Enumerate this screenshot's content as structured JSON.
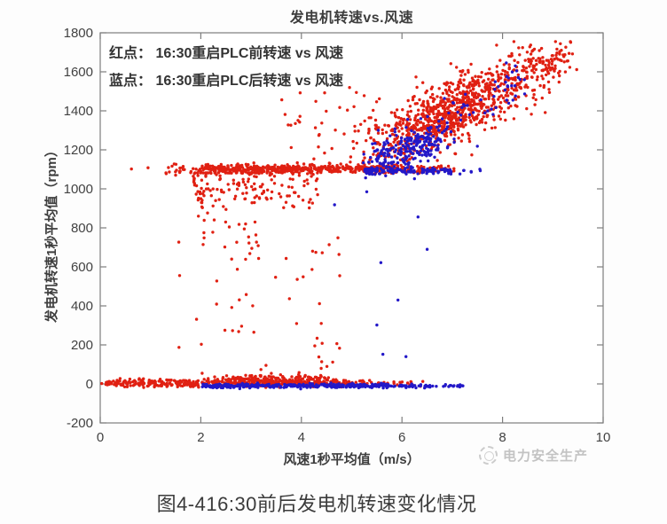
{
  "caption": "图4-416:30前后发电机转速变化情况",
  "watermark": {
    "text": "电力安全生产",
    "icon": "dashed-circle-logo",
    "color": "#c3c3c3"
  },
  "chart": {
    "title": "发电机转速vs.风速",
    "xlabel": "风速1秒平均值（m/s）",
    "ylabel": "发电机转速1秒平均值（rpm）",
    "legend": {
      "red": "红点： 16:30重启PLC前转速 vs 风速",
      "blue": "蓝点： 16:30重启PLC后转速 vs 风速"
    }
  },
  "chart_data": {
    "type": "scatter",
    "title": "发电机转速vs.风速",
    "xlabel": "风速1秒平均值（m/s）",
    "ylabel": "发电机转速1秒平均值（rpm）",
    "xlim": [
      0,
      10
    ],
    "ylim": [
      -200,
      1800
    ],
    "x_ticks": [
      0,
      2,
      4,
      6,
      8,
      10
    ],
    "y_ticks": [
      -200,
      0,
      200,
      400,
      600,
      800,
      1000,
      1200,
      1400,
      1600,
      1800
    ],
    "grid": false,
    "legend_position": "top-left",
    "colors": {
      "red": "#e02012",
      "blue": "#2318c8"
    },
    "series_meaning": {
      "red": "16:30重启PLC前转速 vs 风速",
      "blue": "16:30重启PLC后转速 vs 风速"
    },
    "clusters": [
      {
        "name": "zero-band-red",
        "color": "red",
        "n": 470,
        "x": [
          0.08,
          5.0
        ],
        "dist": "uniform",
        "y0": 4,
        "sd": 9,
        "clip": [
          -18,
          60
        ]
      },
      {
        "name": "zero-band-red-hump",
        "color": "red",
        "n": 150,
        "x": [
          1.9,
          4.7
        ],
        "dist": "central",
        "y0": 24,
        "sd": 14,
        "clip": [
          -5,
          75
        ]
      },
      {
        "name": "zero-band-red-right",
        "color": "red",
        "n": 34,
        "x": [
          4.95,
          6.45
        ],
        "dist": "uniform",
        "y0": 2,
        "sd": 7
      },
      {
        "name": "zero-left-outliers-red",
        "color": "red",
        "points": [
          [
            0.03,
            2
          ],
          [
            0.18,
            -2
          ],
          [
            0.3,
            6
          ]
        ]
      },
      {
        "name": "band1100-red",
        "color": "red",
        "n": 460,
        "x": [
          2.0,
          5.85
        ],
        "dist": "uniform",
        "y0": 1103,
        "sd": 11
      },
      {
        "name": "band1100-red-left",
        "color": "red",
        "n": 26,
        "x": [
          1.3,
          2.05
        ],
        "dist": "uniform",
        "y0": 1098,
        "sd": 16
      },
      {
        "name": "band1100-red-right",
        "color": "red",
        "n": 65,
        "x": [
          5.85,
          7.05
        ],
        "dist": "uniform",
        "y0": 1100,
        "sd": 9
      },
      {
        "name": "band1100-red-isolated",
        "color": "red",
        "points": [
          [
            0.62,
            1102
          ],
          [
            0.95,
            1108
          ]
        ]
      },
      {
        "name": "low-cloud-red",
        "color": "red",
        "n": 170,
        "x": [
          1.85,
          4.35
        ],
        "dist": "uniform",
        "pow": 1.35,
        "y0": 1010,
        "sd": 78,
        "clip": [
          830,
          1082
        ]
      },
      {
        "name": "low-deep-red",
        "color": "red",
        "n": 13,
        "x": [
          2.0,
          3.6
        ],
        "dist": "uniform",
        "y0": 775,
        "sd": 55,
        "clip": [
          640,
          865
        ]
      },
      {
        "name": "drizzle-red-a",
        "color": "red",
        "n": 36,
        "x": [
          2.75,
          4.85
        ],
        "dist": "uniform",
        "y0": 455,
        "uspread": 385
      },
      {
        "name": "drizzle-red-b",
        "color": "red",
        "n": 17,
        "x": [
          1.5,
          2.95
        ],
        "dist": "uniform",
        "y0": 470,
        "uspread": 330
      },
      {
        "name": "rising-cloud-red",
        "color": "red",
        "n": 760,
        "x": [
          4.85,
          9.45
        ],
        "dist": "central",
        "y0": 1140,
        "slope": 122,
        "sd": 92,
        "clip": [
          1085,
          1755
        ]
      },
      {
        "name": "rising-core-red",
        "color": "red",
        "n": 230,
        "x": [
          5.6,
          8.1
        ],
        "dist": "central",
        "y0": 1230,
        "slope": 120,
        "sd": 60,
        "clip": [
          1090,
          1750
        ]
      },
      {
        "name": "above-band-red",
        "color": "red",
        "n": 42,
        "x": [
          3.6,
          5.6
        ],
        "dist": "uniform",
        "y0": 1330,
        "uspread": 190
      },
      {
        "name": "tip-red",
        "color": "red",
        "n": 50,
        "x": [
          8.4,
          9.5
        ],
        "dist": "central",
        "y0": 1630,
        "slope": 50,
        "sd": 35
      },
      {
        "name": "zero-band-blue",
        "color": "blue",
        "n": 320,
        "x": [
          2.02,
          5.8
        ],
        "dist": "uniform",
        "y0": -9,
        "sd": 6,
        "clip": [
          -26,
          8
        ]
      },
      {
        "name": "zero-dashes-blue",
        "color": "blue",
        "n": 52,
        "x": [
          5.82,
          7.22
        ],
        "dist": "uniform",
        "y0": -10,
        "sd": 4
      },
      {
        "name": "band1100-blue",
        "color": "blue",
        "n": 125,
        "x": [
          5.25,
          7.0
        ],
        "dist": "uniform",
        "y0": 1090,
        "sd": 9
      },
      {
        "name": "band1100-blue-ext",
        "color": "blue",
        "n": 7,
        "x": [
          7.0,
          7.6
        ],
        "dist": "uniform",
        "y0": 1088,
        "sd": 8
      },
      {
        "name": "rising-cluster-blue",
        "color": "blue",
        "n": 235,
        "x": [
          5.15,
          7.15
        ],
        "dist": "central",
        "y0": 1115,
        "slope": 95,
        "sd": 52,
        "clip": [
          1045,
          1400
        ]
      },
      {
        "name": "high-sprinkle-blue",
        "color": "blue",
        "n": 48,
        "x": [
          6.75,
          8.45
        ],
        "dist": "uniform",
        "y0": 1320,
        "slope": 150,
        "sd": 65,
        "clip": [
          1150,
          1660
        ]
      },
      {
        "name": "mid-sparse-blue",
        "color": "blue",
        "points": [
          [
            4.66,
            918
          ],
          [
            5.3,
            985
          ],
          [
            5.58,
            622
          ],
          [
            5.5,
            302
          ],
          [
            5.62,
            152
          ],
          [
            6.08,
            140
          ],
          [
            6.32,
            856
          ],
          [
            5.92,
            430
          ],
          [
            6.5,
            690
          ]
        ]
      }
    ],
    "axis_color": "#7d7d7d",
    "tick_label_color": "#424242"
  }
}
